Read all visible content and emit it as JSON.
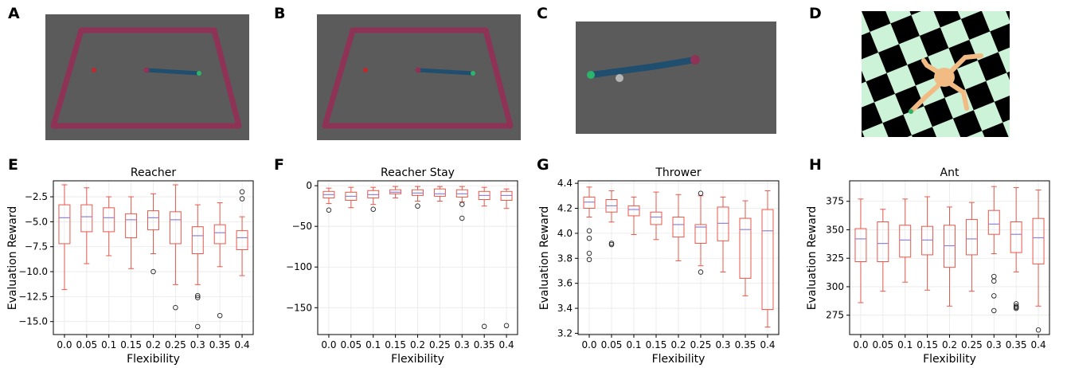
{
  "panels": {
    "A": "A",
    "B": "B",
    "C": "C",
    "D": "D",
    "E": "E",
    "F": "F",
    "G": "G",
    "H": "H"
  },
  "colors": {
    "box": "#e8574a",
    "median": "#8f82d6",
    "arena": "#5b5b5b",
    "border": "#8e3356",
    "rod": "#1f4e6f",
    "checker_light": "#ccf2d8",
    "checker_dark": "#000000",
    "ant": "#f2bb84"
  },
  "chart_data": [
    {
      "type": "box",
      "title": "Reacher",
      "xlabel": "Flexibility",
      "ylabel": "Evaluation Reward",
      "categories": [
        "0.0",
        "0.05",
        "0.1",
        "0.15",
        "0.2",
        "0.25",
        "0.3",
        "0.35",
        "0.4"
      ],
      "ylim": [
        -16.3,
        -0.9
      ],
      "yticks": [
        -2.5,
        -5.0,
        -7.5,
        -10.0,
        -12.5,
        -15.0
      ],
      "ytick_labels": [
        "−2.5",
        "−5.0",
        "−7.5",
        "−10.0",
        "−12.5",
        "−15.0"
      ],
      "boxes": [
        {
          "whislo": -11.8,
          "q1": -7.2,
          "med": -4.6,
          "q3": -3.3,
          "whishi": -1.3,
          "fliers": []
        },
        {
          "whislo": -9.2,
          "q1": -6.0,
          "med": -4.5,
          "q3": -3.3,
          "whishi": -1.6,
          "fliers": []
        },
        {
          "whislo": -8.4,
          "q1": -6.0,
          "med": -4.6,
          "q3": -3.6,
          "whishi": -2.5,
          "fliers": []
        },
        {
          "whislo": -9.7,
          "q1": -6.6,
          "med": -4.8,
          "q3": -4.2,
          "whishi": -2.5,
          "fliers": []
        },
        {
          "whislo": -8.2,
          "q1": -5.8,
          "med": -4.6,
          "q3": -3.9,
          "whishi": -2.2,
          "fliers": [
            -10.0
          ]
        },
        {
          "whislo": -11.3,
          "q1": -7.2,
          "med": -4.8,
          "q3": -4.0,
          "whishi": -1.3,
          "fliers": [
            -13.6
          ]
        },
        {
          "whislo": -11.3,
          "q1": -8.2,
          "med": -6.4,
          "q3": -5.5,
          "whishi": -3.3,
          "fliers": [
            -12.4,
            -12.6,
            -15.5
          ]
        },
        {
          "whislo": -9.5,
          "q1": -7.2,
          "med": -6.1,
          "q3": -5.3,
          "whishi": -3.1,
          "fliers": [
            -14.4
          ]
        },
        {
          "whislo": -10.4,
          "q1": -7.8,
          "med": -6.6,
          "q3": -5.9,
          "whishi": -4.5,
          "fliers": [
            -2.0,
            -2.7
          ]
        }
      ]
    },
    {
      "type": "box",
      "title": "Reacher Stay",
      "xlabel": "Flexibility",
      "ylabel": "",
      "categories": [
        "0.0",
        "0.05",
        "0.1",
        "0.15",
        "0.2",
        "0.25",
        "0.3",
        "0.35",
        "0.4"
      ],
      "ylim": [
        -183,
        6
      ],
      "yticks": [
        0,
        -50,
        -100,
        -150
      ],
      "ytick_labels": [
        "0",
        "−50",
        "−100",
        "−150"
      ],
      "boxes": [
        {
          "whislo": -22,
          "q1": -15,
          "med": -11,
          "q3": -7,
          "whishi": -3,
          "fliers": [
            -30
          ]
        },
        {
          "whislo": -27,
          "q1": -18,
          "med": -13,
          "q3": -8,
          "whishi": -2,
          "fliers": []
        },
        {
          "whislo": -23,
          "q1": -15,
          "med": -11,
          "q3": -6,
          "whishi": -2,
          "fliers": [
            -29
          ]
        },
        {
          "whislo": -15,
          "q1": -10,
          "med": -8,
          "q3": -5,
          "whishi": -1,
          "fliers": []
        },
        {
          "whislo": -19,
          "q1": -12,
          "med": -9,
          "q3": -5,
          "whishi": -1,
          "fliers": [
            -25
          ]
        },
        {
          "whislo": -19,
          "q1": -13,
          "med": -10,
          "q3": -4,
          "whishi": -1,
          "fliers": []
        },
        {
          "whislo": -20,
          "q1": -14,
          "med": -10,
          "q3": -5,
          "whishi": -1,
          "fliers": [
            -23,
            -40
          ]
        },
        {
          "whislo": -25,
          "q1": -17,
          "med": -12,
          "q3": -7,
          "whishi": -2,
          "fliers": [
            -173
          ]
        },
        {
          "whislo": -28,
          "q1": -18,
          "med": -12,
          "q3": -7,
          "whishi": -4,
          "fliers": [
            -172
          ]
        }
      ]
    },
    {
      "type": "box",
      "title": "Thrower",
      "xlabel": "Flexibility",
      "ylabel": "Evaluation Reward",
      "categories": [
        "0.0",
        "0.05",
        "0.1",
        "0.15",
        "0.2",
        "0.25",
        "0.3",
        "0.35",
        "0.4"
      ],
      "ylim": [
        3.19,
        4.42
      ],
      "yticks": [
        4.4,
        4.2,
        4.0,
        3.8,
        3.6,
        3.4,
        3.2
      ],
      "ytick_labels": [
        "4.4",
        "4.2",
        "4.0",
        "3.8",
        "3.6",
        "3.4",
        "3.2"
      ],
      "boxes": [
        {
          "whislo": 4.13,
          "q1": 4.2,
          "med": 4.25,
          "q3": 4.29,
          "whishi": 4.37,
          "fliers": [
            4.02,
            3.96,
            3.84,
            3.79
          ]
        },
        {
          "whislo": 4.09,
          "q1": 4.17,
          "med": 4.22,
          "q3": 4.27,
          "whishi": 4.34,
          "fliers": [
            3.92,
            3.91
          ]
        },
        {
          "whislo": 3.99,
          "q1": 4.14,
          "med": 4.19,
          "q3": 4.22,
          "whishi": 4.29,
          "fliers": []
        },
        {
          "whislo": 3.95,
          "q1": 4.07,
          "med": 4.13,
          "q3": 4.17,
          "whishi": 4.33,
          "fliers": []
        },
        {
          "whislo": 3.78,
          "q1": 3.97,
          "med": 4.07,
          "q3": 4.13,
          "whishi": 4.31,
          "fliers": []
        },
        {
          "whislo": 3.74,
          "q1": 3.92,
          "med": 4.05,
          "q3": 4.07,
          "whishi": 4.3,
          "fliers": [
            4.32,
            3.69
          ]
        },
        {
          "whislo": 3.69,
          "q1": 3.94,
          "med": 4.08,
          "q3": 4.21,
          "whishi": 4.29,
          "fliers": []
        },
        {
          "whislo": 3.5,
          "q1": 3.64,
          "med": 4.03,
          "q3": 4.12,
          "whishi": 4.26,
          "fliers": []
        },
        {
          "whislo": 3.25,
          "q1": 3.39,
          "med": 4.02,
          "q3": 4.19,
          "whishi": 4.34,
          "fliers": []
        }
      ]
    },
    {
      "type": "box",
      "title": "Ant",
      "xlabel": "Flexibility",
      "ylabel": "Evaluation Reward",
      "categories": [
        "0.0",
        "0.05",
        "0.1",
        "0.15",
        "0.2",
        "0.25",
        "0.3",
        "0.35",
        "0.4"
      ],
      "ylim": [
        258,
        393
      ],
      "yticks": [
        375,
        350,
        325,
        300,
        275
      ],
      "ytick_labels": [
        "375",
        "350",
        "325",
        "300",
        "275"
      ],
      "boxes": [
        {
          "whislo": 286,
          "q1": 322,
          "med": 342,
          "q3": 351,
          "whishi": 377,
          "fliers": []
        },
        {
          "whislo": 296,
          "q1": 322,
          "med": 338,
          "q3": 357,
          "whishi": 368,
          "fliers": []
        },
        {
          "whislo": 304,
          "q1": 326,
          "med": 341,
          "q3": 354,
          "whishi": 377,
          "fliers": []
        },
        {
          "whislo": 297,
          "q1": 328,
          "med": 341,
          "q3": 353,
          "whishi": 379,
          "fliers": []
        },
        {
          "whislo": 283,
          "q1": 317,
          "med": 336,
          "q3": 354,
          "whishi": 370,
          "fliers": []
        },
        {
          "whislo": 296,
          "q1": 328,
          "med": 342,
          "q3": 359,
          "whishi": 374,
          "fliers": []
        },
        {
          "whislo": 329,
          "q1": 346,
          "med": 355,
          "q3": 367,
          "whishi": 388,
          "fliers": [
            309,
            305,
            292,
            279
          ]
        },
        {
          "whislo": 313,
          "q1": 330,
          "med": 346,
          "q3": 357,
          "whishi": 387,
          "fliers": [
            285,
            283,
            282,
            281
          ]
        },
        {
          "whislo": 283,
          "q1": 320,
          "med": 343,
          "q3": 360,
          "whishi": 385,
          "fliers": [
            262
          ]
        }
      ]
    }
  ]
}
